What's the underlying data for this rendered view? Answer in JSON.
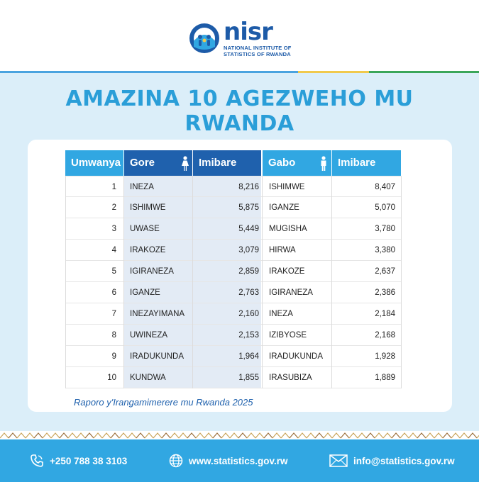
{
  "logo": {
    "wordmark": "nisr",
    "line1": "NATIONAL INSTITUTE OF",
    "line2": "STATISTICS OF RWANDA"
  },
  "title": {
    "line1": "AMAZINA 10 AGEZWEHO MU",
    "line2": "RWANDA"
  },
  "table": {
    "headers": {
      "rank": "Umwanya",
      "girls": "Gore",
      "girls_count": "Imibare",
      "boys": "Gabo",
      "boys_count": "Imibare"
    },
    "rows": [
      {
        "rank": "1",
        "girl": "INEZA",
        "girl_count": "8,216",
        "boy": "ISHIMWE",
        "boy_count": "8,407"
      },
      {
        "rank": "2",
        "girl": "ISHIMWE",
        "girl_count": "5,875",
        "boy": "IGANZE",
        "boy_count": "5,070"
      },
      {
        "rank": "3",
        "girl": "UWASE",
        "girl_count": "5,449",
        "boy": "MUGISHA",
        "boy_count": "3,780"
      },
      {
        "rank": "4",
        "girl": "IRAKOZE",
        "girl_count": "3,079",
        "boy": "HIRWA",
        "boy_count": "3,380"
      },
      {
        "rank": "5",
        "girl": "IGIRANEZA",
        "girl_count": "2,859",
        "boy": "IRAKOZE",
        "boy_count": "2,637"
      },
      {
        "rank": "6",
        "girl": "IGANZE",
        "girl_count": "2,763",
        "boy": "IGIRANEZA",
        "boy_count": "2,386"
      },
      {
        "rank": "7",
        "girl": "INEZAYIMANA",
        "girl_count": "2,160",
        "boy": "INEZA",
        "boy_count": "2,184"
      },
      {
        "rank": "8",
        "girl": "UWINEZA",
        "girl_count": "2,153",
        "boy": "IZIBYOSE",
        "boy_count": "2,168"
      },
      {
        "rank": "9",
        "girl": "IRADUKUNDA",
        "girl_count": "1,964",
        "boy": "IRADUKUNDA",
        "boy_count": "1,928"
      },
      {
        "rank": "10",
        "girl": "KUNDWA",
        "girl_count": "1,855",
        "boy": "IRASUBIZA",
        "boy_count": "1,889"
      }
    ]
  },
  "source": "Raporo y'Irangamimerere mu Rwanda 2025",
  "footer": {
    "phone": "+250 788 38 3103",
    "website": "www.statistics.gov.rw",
    "email": "info@statistics.gov.rw"
  },
  "colors": {
    "brand_blue": "#1f61ad",
    "light_blue": "#31a7e2",
    "background": "#dbeef9"
  },
  "icons": [
    "logo-emblem-icon",
    "female-icon",
    "male-icon",
    "phone-icon",
    "globe-icon",
    "mail-icon"
  ]
}
